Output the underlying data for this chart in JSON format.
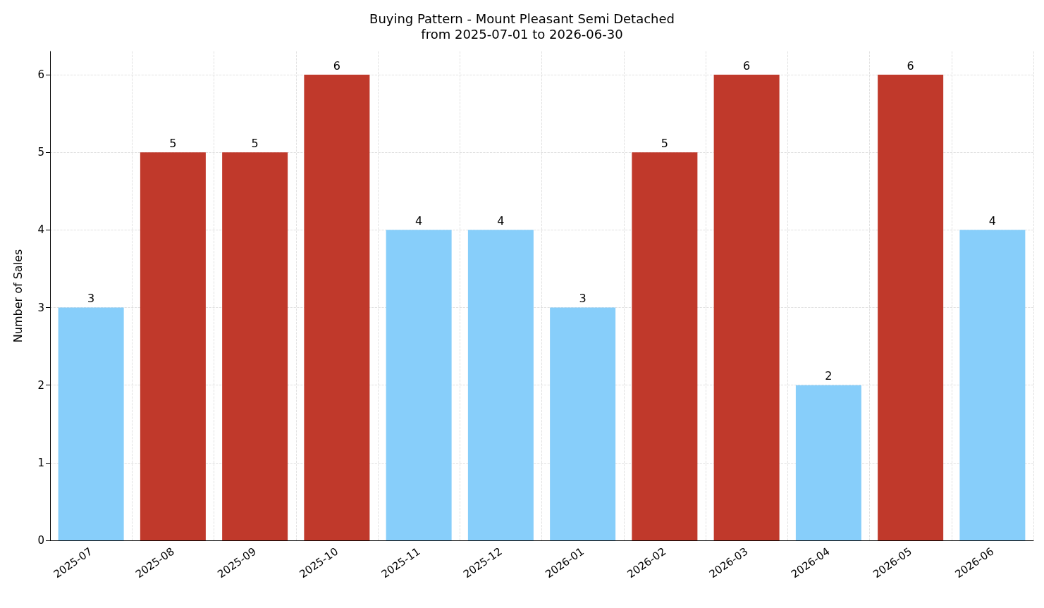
{
  "chart_data": {
    "type": "bar",
    "title": "Buying Pattern - Mount Pleasant Semi Detached",
    "subtitle": "from 2025-07-01 to 2026-06-30",
    "ylabel": "Number of Sales",
    "categories": [
      "2025-07",
      "2025-08",
      "2025-09",
      "2025-10",
      "2025-11",
      "2025-12",
      "2026-01",
      "2026-02",
      "2026-03",
      "2026-04",
      "2026-05",
      "2026-06"
    ],
    "values": [
      3,
      5,
      5,
      6,
      4,
      4,
      3,
      5,
      6,
      2,
      6,
      4
    ],
    "colors": [
      "#87cefa",
      "#c0392b",
      "#c0392b",
      "#c0392b",
      "#87cefa",
      "#87cefa",
      "#87cefa",
      "#c0392b",
      "#c0392b",
      "#87cefa",
      "#c0392b",
      "#87cefa"
    ],
    "ylim": [
      0,
      6.3
    ],
    "yticks": [
      0,
      1,
      2,
      3,
      4,
      5,
      6
    ],
    "grid": true,
    "data_labels": true
  }
}
